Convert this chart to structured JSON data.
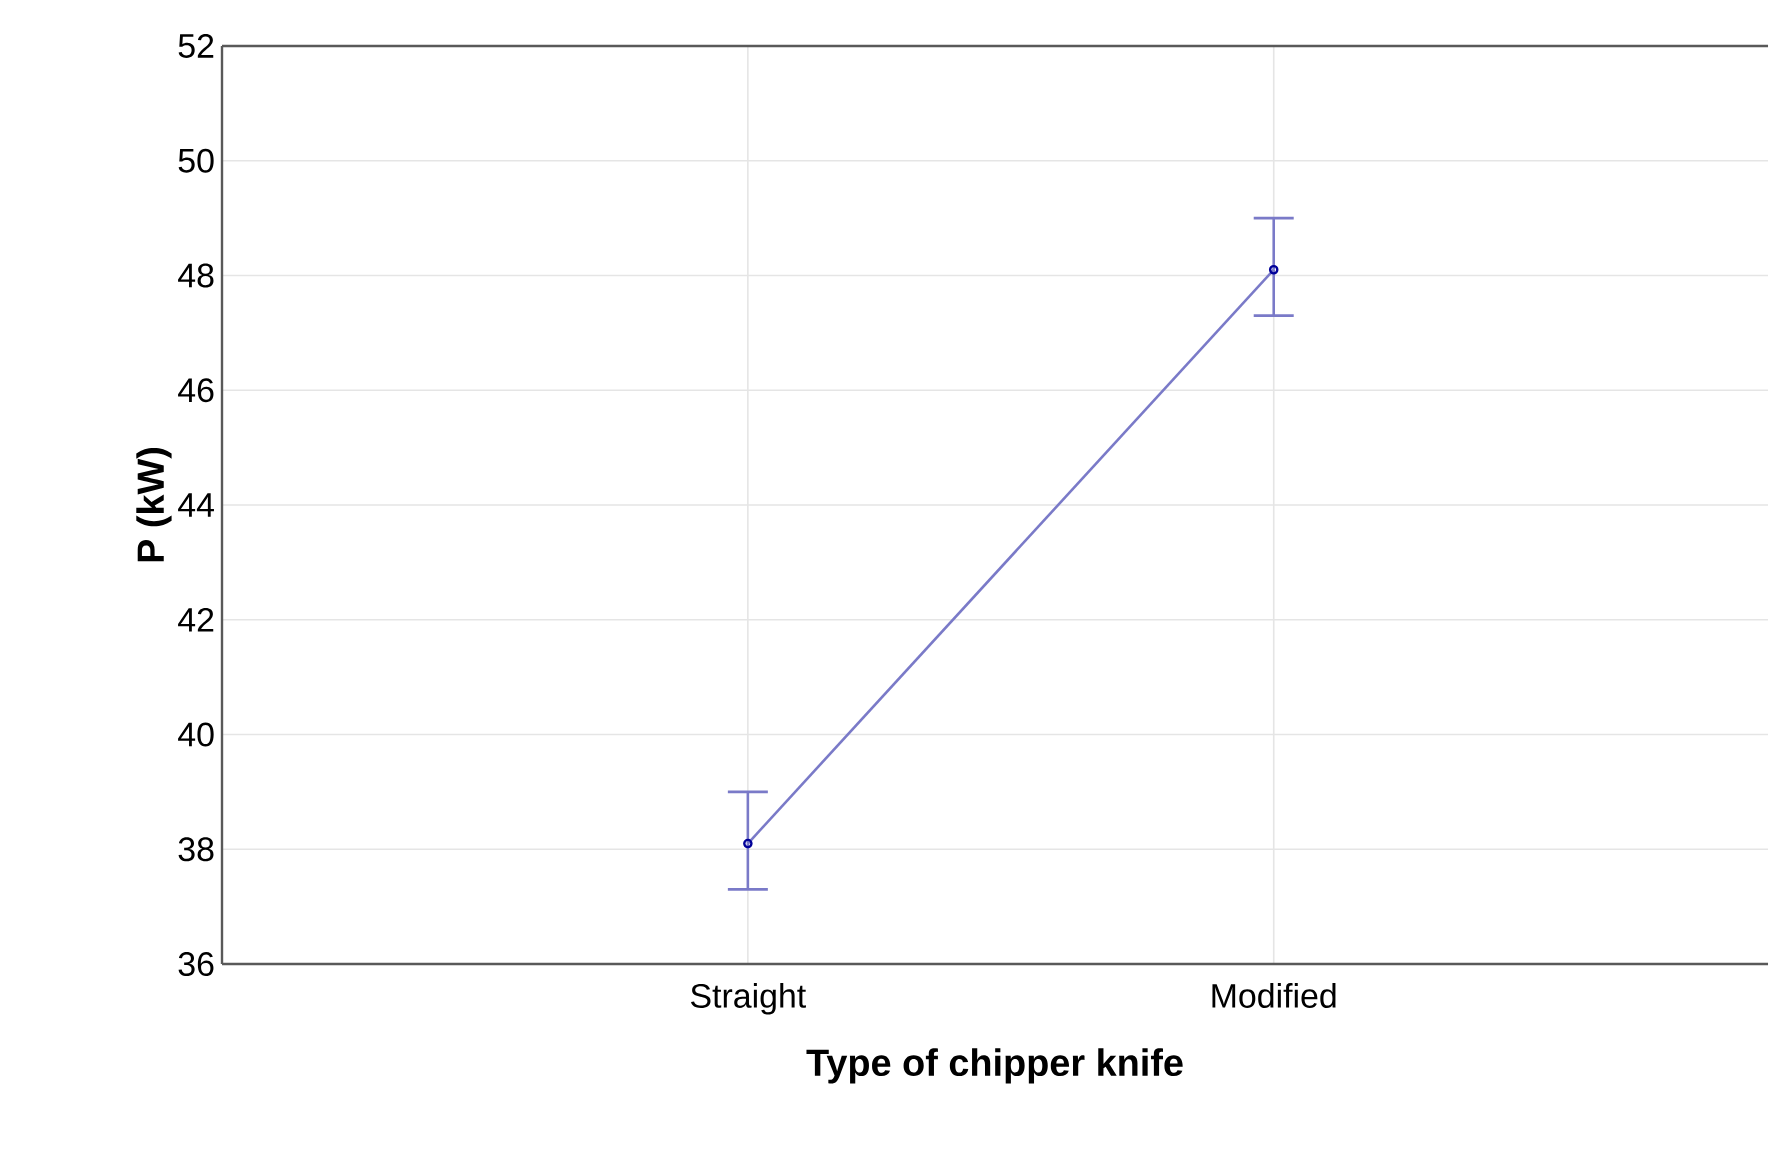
{
  "chart_data": {
    "type": "line",
    "xlabel": "Type of chipper knife",
    "ylabel": "P (kW)",
    "categories": [
      "Straight",
      "Modified"
    ],
    "series": [
      {
        "color": "#7a7ac8",
        "values": [
          38.1,
          48.1
        ],
        "errors": [
          [
            37.3,
            39.0
          ],
          [
            47.3,
            49.0
          ]
        ]
      }
    ],
    "ylim": [
      36,
      52
    ],
    "yticks": [
      36,
      38,
      40,
      42,
      44,
      46,
      48,
      50,
      52
    ],
    "grid": true,
    "marker": "circle",
    "line_style": "solid"
  }
}
